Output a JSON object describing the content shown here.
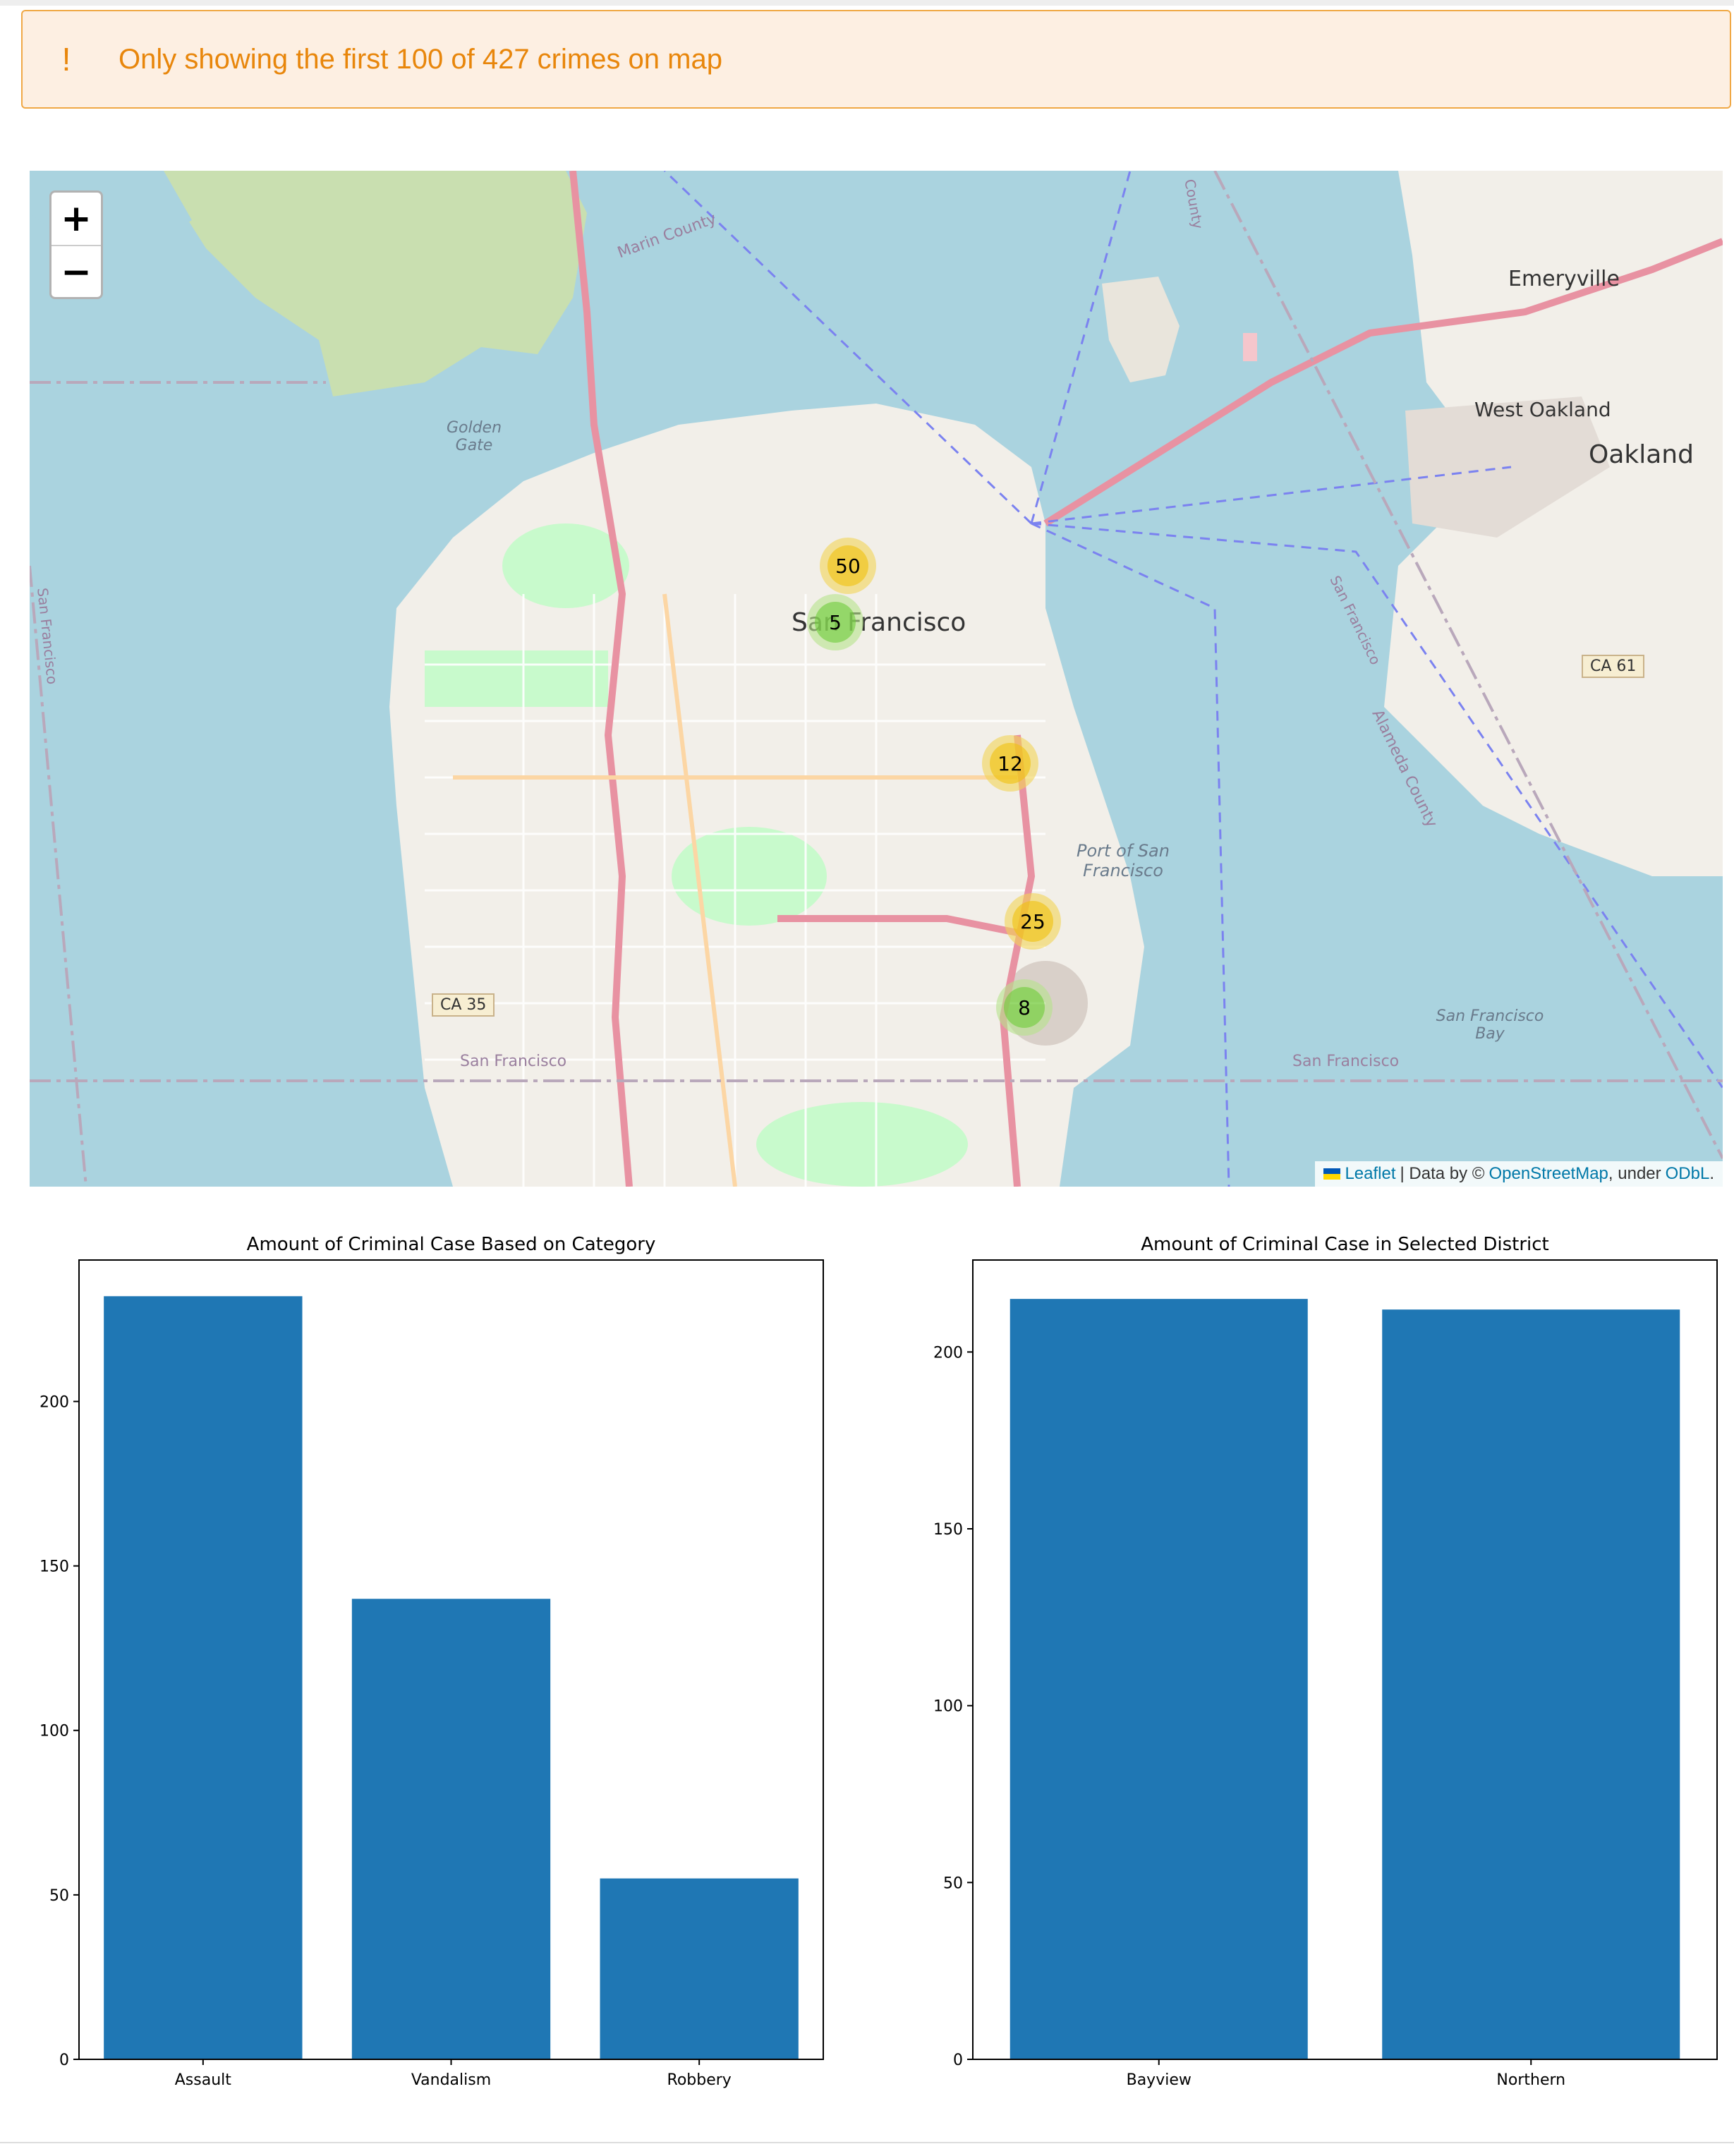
{
  "warning": {
    "icon": "exclamation-icon",
    "text": "Only showing the first 100 of 427 crimes on map",
    "color": "#e8860b"
  },
  "map": {
    "zoom_in_label": "+",
    "zoom_out_label": "−",
    "labels": {
      "san_francisco": "San Francisco",
      "oakland": "Oakland",
      "emeryville": "Emeryville",
      "west_oakland": "West Oakland",
      "port": "Port of San Francisco",
      "golden_gate": "Golden Gate",
      "marin_county": "Marin County",
      "sf_bay": "San Francisco Bay",
      "ca35": "CA 35",
      "ca61": "CA 61",
      "sf_county_bottom_left": "San Francisco",
      "sf_county_bottom_right": "San Francisco",
      "alameda_county": "Alameda County",
      "sf_left_edge": "San Francisco",
      "sf_diag": "San Francisco",
      "county_top": "County"
    },
    "clusters": [
      {
        "count": "50",
        "color": "yellow"
      },
      {
        "count": "5",
        "color": "green"
      },
      {
        "count": "12",
        "color": "yellow"
      },
      {
        "count": "25",
        "color": "yellow"
      },
      {
        "count": "8",
        "color": "green"
      }
    ],
    "attribution": {
      "leaflet": "Leaflet",
      "sep": "| Data by ©",
      "osm": "OpenStreetMap",
      "under": ", under",
      "odbl": "ODbL",
      "end": "."
    }
  },
  "chart_data": [
    {
      "type": "bar",
      "title": "Amount of Criminal Case Based on Category",
      "categories": [
        "Assault",
        "Vandalism",
        "Robbery"
      ],
      "values": [
        232,
        140,
        55
      ],
      "ylim": [
        0,
        243
      ],
      "yticks": [
        0,
        50,
        100,
        150,
        200
      ],
      "color": "#1f77b4"
    },
    {
      "type": "bar",
      "title": "Amount of Criminal Case in Selected District",
      "categories": [
        "Bayview",
        "Northern"
      ],
      "values": [
        215,
        212
      ],
      "ylim": [
        0,
        226
      ],
      "yticks": [
        0,
        50,
        100,
        150,
        200
      ],
      "color": "#1f77b4"
    }
  ]
}
